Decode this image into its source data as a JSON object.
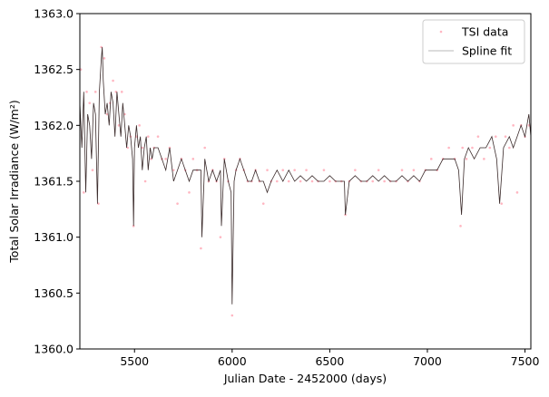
{
  "chart_data": {
    "type": "scatter",
    "xlabel": "Julian Date - 2452000 (days)",
    "ylabel": "Total Solar Irradiance (W/m²)",
    "xlim": [
      5220,
      7530
    ],
    "ylim": [
      1360.0,
      1363.0
    ],
    "xticks": [
      5500,
      6000,
      6500,
      7000,
      7500
    ],
    "xtick_labels": [
      "5500",
      "6000",
      "6500",
      "7000",
      "7500"
    ],
    "yticks": [
      1360.0,
      1360.5,
      1361.0,
      1361.5,
      1362.0,
      1362.5,
      1363.0
    ],
    "ytick_labels": [
      "1360.0",
      "1360.5",
      "1361.0",
      "1361.5",
      "1362.0",
      "1362.5",
      "1363.0"
    ],
    "grid": false,
    "legend_position": "top-right",
    "series": [
      {
        "name": "TSI data",
        "kind": "points",
        "color": "#ffb6c1",
        "x": [
          5225,
          5240,
          5255,
          5270,
          5285,
          5300,
          5315,
          5330,
          5345,
          5360,
          5375,
          5390,
          5405,
          5420,
          5435,
          5450,
          5465,
          5480,
          5495,
          5510,
          5525,
          5540,
          5555,
          5570,
          5585,
          5600,
          5620,
          5640,
          5660,
          5680,
          5700,
          5720,
          5740,
          5760,
          5780,
          5800,
          5820,
          5840,
          5860,
          5880,
          5900,
          5920,
          5940,
          5960,
          5980,
          6000,
          6020,
          6040,
          6060,
          6080,
          6100,
          6120,
          6140,
          6160,
          6180,
          6200,
          6230,
          6260,
          6290,
          6320,
          6350,
          6380,
          6410,
          6440,
          6470,
          6500,
          6530,
          6560,
          6580,
          6600,
          6630,
          6660,
          6690,
          6720,
          6750,
          6780,
          6810,
          6840,
          6870,
          6900,
          6930,
          6960,
          6990,
          7020,
          7050,
          7080,
          7110,
          7140,
          7170,
          7180,
          7200,
          7230,
          7260,
          7290,
          7320,
          7350,
          7380,
          7400,
          7420,
          7440,
          7460,
          7480,
          7500,
          7520
        ],
        "y": [
          1362.5,
          1361.4,
          1362.3,
          1362.2,
          1361.6,
          1362.3,
          1361.3,
          1362.7,
          1362.6,
          1362.1,
          1362.2,
          1362.4,
          1362.3,
          1362.0,
          1362.3,
          1362.1,
          1361.8,
          1361.9,
          1361.1,
          1361.9,
          1362.0,
          1361.8,
          1361.5,
          1361.9,
          1361.7,
          1361.8,
          1361.9,
          1361.7,
          1361.7,
          1361.8,
          1361.6,
          1361.3,
          1361.7,
          1361.6,
          1361.4,
          1361.7,
          1361.6,
          1360.9,
          1361.8,
          1361.5,
          1361.6,
          1361.5,
          1361.0,
          1361.7,
          1361.5,
          1360.3,
          1361.6,
          1361.7,
          1361.6,
          1361.5,
          1361.5,
          1361.6,
          1361.5,
          1361.3,
          1361.6,
          1361.5,
          1361.5,
          1361.6,
          1361.5,
          1361.6,
          1361.5,
          1361.6,
          1361.5,
          1361.5,
          1361.6,
          1361.5,
          1361.5,
          1361.5,
          1361.2,
          1361.5,
          1361.6,
          1361.5,
          1361.5,
          1361.5,
          1361.6,
          1361.5,
          1361.5,
          1361.5,
          1361.6,
          1361.5,
          1361.6,
          1361.5,
          1361.6,
          1361.7,
          1361.6,
          1361.7,
          1361.8,
          1361.7,
          1361.1,
          1361.8,
          1361.7,
          1361.8,
          1361.9,
          1361.7,
          1361.8,
          1361.9,
          1361.3,
          1361.9,
          1361.8,
          1362.0,
          1361.4,
          1362.0,
          1361.9,
          1362.0
        ]
      },
      {
        "name": "Spline fit",
        "kind": "line",
        "color": "#3a2a2a",
        "x": [
          5220,
          5230,
          5240,
          5250,
          5260,
          5270,
          5280,
          5290,
          5300,
          5310,
          5320,
          5330,
          5335,
          5340,
          5350,
          5360,
          5370,
          5380,
          5390,
          5400,
          5410,
          5420,
          5430,
          5440,
          5450,
          5460,
          5470,
          5480,
          5490,
          5495,
          5500,
          5510,
          5520,
          5530,
          5540,
          5550,
          5560,
          5570,
          5580,
          5590,
          5600,
          5620,
          5640,
          5660,
          5680,
          5700,
          5720,
          5740,
          5760,
          5780,
          5800,
          5820,
          5840,
          5845,
          5860,
          5880,
          5900,
          5920,
          5940,
          5945,
          5960,
          5980,
          5995,
          6000,
          6010,
          6020,
          6040,
          6060,
          6080,
          6100,
          6120,
          6140,
          6160,
          6180,
          6200,
          6230,
          6260,
          6290,
          6320,
          6350,
          6380,
          6410,
          6440,
          6470,
          6500,
          6530,
          6560,
          6575,
          6580,
          6600,
          6630,
          6660,
          6690,
          6720,
          6750,
          6780,
          6810,
          6840,
          6870,
          6900,
          6930,
          6960,
          6990,
          7020,
          7050,
          7080,
          7110,
          7140,
          7160,
          7175,
          7190,
          7210,
          7240,
          7270,
          7300,
          7330,
          7355,
          7370,
          7390,
          7420,
          7440,
          7460,
          7480,
          7500,
          7520,
          7530
        ],
        "y": [
          1362.2,
          1361.8,
          1362.3,
          1361.4,
          1362.1,
          1362.0,
          1361.7,
          1362.2,
          1362.1,
          1361.3,
          1362.3,
          1362.6,
          1362.7,
          1362.4,
          1362.1,
          1362.2,
          1362.0,
          1362.3,
          1362.2,
          1361.9,
          1362.3,
          1362.1,
          1361.9,
          1362.2,
          1362.0,
          1361.8,
          1362.0,
          1361.9,
          1361.7,
          1361.1,
          1361.8,
          1362.0,
          1361.8,
          1361.9,
          1361.6,
          1361.8,
          1361.9,
          1361.6,
          1361.8,
          1361.7,
          1361.8,
          1361.8,
          1361.7,
          1361.6,
          1361.8,
          1361.5,
          1361.6,
          1361.7,
          1361.6,
          1361.5,
          1361.6,
          1361.6,
          1361.6,
          1361.0,
          1361.7,
          1361.5,
          1361.6,
          1361.5,
          1361.6,
          1361.1,
          1361.7,
          1361.5,
          1361.4,
          1360.4,
          1361.5,
          1361.6,
          1361.7,
          1361.6,
          1361.5,
          1361.5,
          1361.6,
          1361.5,
          1361.5,
          1361.4,
          1361.5,
          1361.6,
          1361.5,
          1361.6,
          1361.5,
          1361.55,
          1361.5,
          1361.55,
          1361.5,
          1361.5,
          1361.55,
          1361.5,
          1361.5,
          1361.5,
          1361.2,
          1361.5,
          1361.55,
          1361.5,
          1361.5,
          1361.55,
          1361.5,
          1361.55,
          1361.5,
          1361.5,
          1361.55,
          1361.5,
          1361.55,
          1361.5,
          1361.6,
          1361.6,
          1361.6,
          1361.7,
          1361.7,
          1361.7,
          1361.6,
          1361.2,
          1361.7,
          1361.8,
          1361.7,
          1361.8,
          1361.8,
          1361.9,
          1361.7,
          1361.3,
          1361.8,
          1361.9,
          1361.8,
          1361.9,
          1362.0,
          1361.9,
          1362.1,
          1361.9
        ]
      }
    ]
  }
}
